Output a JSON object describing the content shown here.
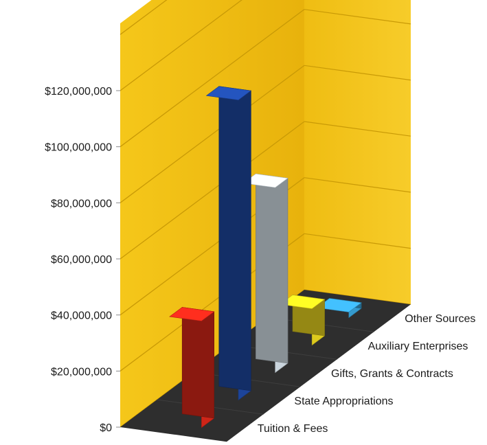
{
  "chart_data": {
    "type": "bar",
    "style": "3d-column",
    "title": "",
    "xlabel": "",
    "ylabel": "",
    "ylim": [
      0,
      120000000
    ],
    "y_ticks": [
      0,
      20000000,
      40000000,
      60000000,
      80000000,
      100000000,
      120000000
    ],
    "y_tick_labels": [
      "$0",
      "$20,000,000",
      "$40,000,000",
      "$60,000,000",
      "$80,000,000",
      "$100,000,000",
      "$120,000,000"
    ],
    "categories": [
      "Tuition & Fees",
      "State Appropriations",
      "Gifts, Grants & Contracts",
      "Auxiliary Enterprises",
      "Other Sources"
    ],
    "values": [
      38000000,
      107000000,
      66000000,
      13000000,
      2000000
    ],
    "grid": true,
    "colors": {
      "wall": "#f2c010",
      "wall_dark": "#d9a708",
      "floor": "#2e2e2e",
      "bars": [
        "#e0281a",
        "#1f4aa6",
        "#dce8f0",
        "#f0dc20",
        "#3aa8e0"
      ]
    }
  }
}
